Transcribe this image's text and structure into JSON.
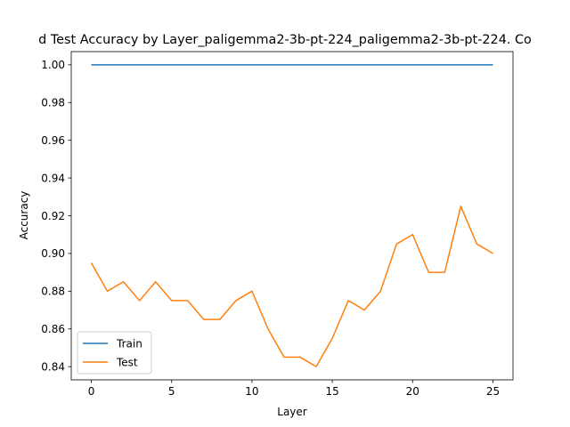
{
  "chart_data": {
    "type": "line",
    "title": "d Test Accuracy by Layer_paligemma2-3b-pt-224_paligemma2-3b-pt-224. Co",
    "xlabel": "Layer",
    "ylabel": "Accuracy",
    "xlim": [
      -1.25,
      26.25
    ],
    "ylim": [
      0.833,
      1.007
    ],
    "xticks": [
      0,
      5,
      10,
      15,
      20,
      25
    ],
    "xtick_labels": [
      "0",
      "5",
      "10",
      "15",
      "20",
      "25"
    ],
    "yticks": [
      0.84,
      0.86,
      0.88,
      0.9,
      0.92,
      0.94,
      0.96,
      0.98,
      1.0
    ],
    "ytick_labels": [
      "0.84",
      "0.86",
      "0.88",
      "0.90",
      "0.92",
      "0.94",
      "0.96",
      "0.98",
      "1.00"
    ],
    "grid": false,
    "legend_position": "lower-left",
    "x": [
      0,
      1,
      2,
      3,
      4,
      5,
      6,
      7,
      8,
      9,
      10,
      11,
      12,
      13,
      14,
      15,
      16,
      17,
      18,
      19,
      20,
      21,
      22,
      23,
      24,
      25
    ],
    "series": [
      {
        "name": "Train",
        "color": "#1f77b4",
        "values": [
          1.0,
          1.0,
          1.0,
          1.0,
          1.0,
          1.0,
          1.0,
          1.0,
          1.0,
          1.0,
          1.0,
          1.0,
          1.0,
          1.0,
          1.0,
          1.0,
          1.0,
          1.0,
          1.0,
          1.0,
          1.0,
          1.0,
          1.0,
          1.0,
          1.0,
          1.0
        ]
      },
      {
        "name": "Test",
        "color": "#ff7f0e",
        "values": [
          0.895,
          0.88,
          0.885,
          0.875,
          0.885,
          0.875,
          0.875,
          0.865,
          0.865,
          0.875,
          0.88,
          0.86,
          0.845,
          0.845,
          0.84,
          0.855,
          0.875,
          0.87,
          0.88,
          0.905,
          0.91,
          0.89,
          0.89,
          0.925,
          0.905,
          0.9
        ]
      }
    ]
  }
}
